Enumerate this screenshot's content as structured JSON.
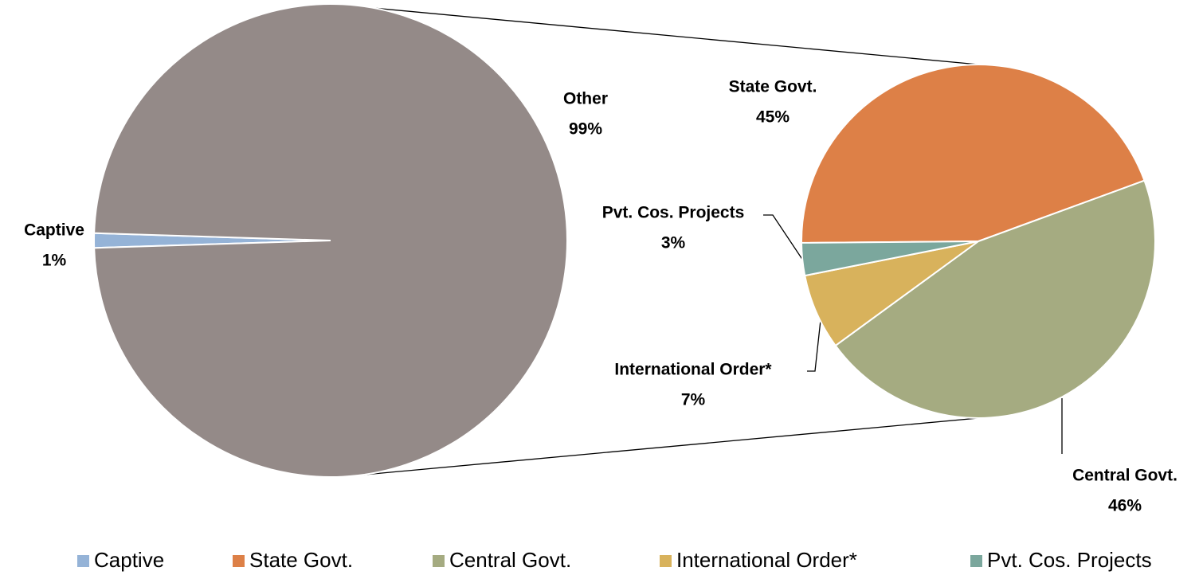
{
  "chart_data": [
    {
      "type": "pie",
      "categories": [
        "Captive",
        "Other"
      ],
      "values": [
        1,
        99
      ],
      "value_labels": [
        "1%",
        "99%"
      ],
      "colors": [
        "#95b3d7",
        "#948a88"
      ],
      "legend": "bottom"
    },
    {
      "type": "pie",
      "categories": [
        "State Govt.",
        "Central Govt.",
        "International Order*",
        "Pvt. Cos. Projects"
      ],
      "values": [
        45,
        46,
        7,
        3
      ],
      "value_labels": [
        "45%",
        "46%",
        "7%",
        "3%"
      ],
      "colors": [
        "#dd8047",
        "#a5ab81",
        "#d8b25c",
        "#7ba79d"
      ],
      "legend": "bottom"
    }
  ]
}
